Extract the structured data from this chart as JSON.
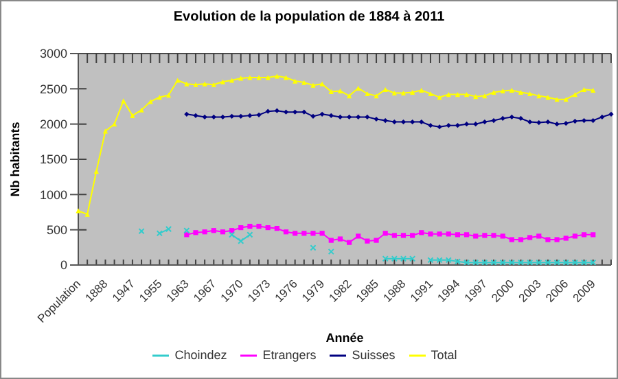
{
  "chart_data": {
    "type": "line",
    "title": "Evolution de la population de 1884 à 2011",
    "xlabel": "Année",
    "ylabel": "Nb habitants",
    "categories": [
      "Population",
      null,
      null,
      "1888",
      null,
      null,
      "1947",
      null,
      null,
      "1955",
      null,
      null,
      "1963",
      null,
      null,
      "1967",
      null,
      null,
      "1970",
      null,
      null,
      "1973",
      null,
      null,
      "1976",
      null,
      null,
      "1979",
      null,
      null,
      "1982",
      null,
      null,
      "1985",
      null,
      null,
      "1988",
      null,
      null,
      "1991",
      null,
      null,
      "1994",
      null,
      null,
      "1997",
      null,
      null,
      "2000",
      null,
      null,
      "2003",
      null,
      null,
      "2006",
      null,
      null,
      "2009",
      null,
      null
    ],
    "ylim": [
      0,
      3000
    ],
    "yticks": [
      0,
      500,
      1000,
      1500,
      2000,
      2500,
      3000
    ],
    "grid": true,
    "legend": "bottom",
    "series": [
      {
        "name": "Suisses",
        "color": "#000080",
        "marker": "diamond",
        "values": [
          null,
          null,
          null,
          null,
          null,
          null,
          null,
          null,
          null,
          null,
          null,
          null,
          2140,
          2120,
          2100,
          2100,
          2100,
          2110,
          2110,
          2120,
          2130,
          2180,
          2190,
          2170,
          2170,
          2170,
          2110,
          2140,
          2120,
          2100,
          2100,
          2100,
          2100,
          2070,
          2050,
          2030,
          2030,
          2030,
          2030,
          1980,
          1960,
          1980,
          1980,
          2000,
          2000,
          2030,
          2050,
          2080,
          2100,
          2080,
          2030,
          2020,
          2030,
          2000,
          2010,
          2040,
          2050,
          2050,
          2100,
          2140
        ]
      },
      {
        "name": "Etrangers",
        "color": "#ff00ff",
        "marker": "square",
        "values": [
          null,
          null,
          null,
          null,
          null,
          null,
          null,
          null,
          null,
          null,
          null,
          null,
          430,
          460,
          470,
          490,
          470,
          490,
          530,
          550,
          550,
          530,
          520,
          470,
          450,
          450,
          450,
          450,
          350,
          370,
          320,
          410,
          340,
          350,
          450,
          420,
          420,
          420,
          460,
          440,
          440,
          440,
          430,
          430,
          410,
          420,
          420,
          410,
          360,
          360,
          390,
          410,
          360,
          360,
          380,
          410,
          430,
          430,
          null,
          null
        ]
      },
      {
        "name": "Total",
        "color": "#ffff00",
        "marker": "triangle",
        "values": [
          770,
          720,
          1330,
          1900,
          2000,
          2330,
          2120,
          2200,
          2320,
          2380,
          2410,
          2620,
          2570,
          2560,
          2570,
          2560,
          2600,
          2620,
          2650,
          2660,
          2660,
          2660,
          2680,
          2660,
          2610,
          2590,
          2550,
          2570,
          2460,
          2470,
          2400,
          2510,
          2430,
          2400,
          2490,
          2440,
          2440,
          2450,
          2480,
          2430,
          2380,
          2420,
          2420,
          2420,
          2390,
          2400,
          2450,
          2470,
          2480,
          2450,
          2430,
          2400,
          2380,
          2350,
          2350,
          2420,
          2490,
          2480,
          null,
          null
        ]
      },
      {
        "name": "Choindez",
        "color": "#33cccc",
        "marker": "cross",
        "values": [
          null,
          null,
          null,
          null,
          null,
          null,
          null,
          480,
          null,
          450,
          510,
          null,
          490,
          null,
          null,
          null,
          null,
          430,
          340,
          430,
          null,
          null,
          null,
          null,
          null,
          null,
          245,
          null,
          190,
          null,
          null,
          null,
          null,
          null,
          90,
          90,
          90,
          90,
          null,
          70,
          70,
          70,
          50,
          35,
          35,
          35,
          35,
          35,
          35,
          35,
          35,
          35,
          35,
          35,
          35,
          35,
          35,
          35,
          null,
          null
        ]
      }
    ]
  }
}
